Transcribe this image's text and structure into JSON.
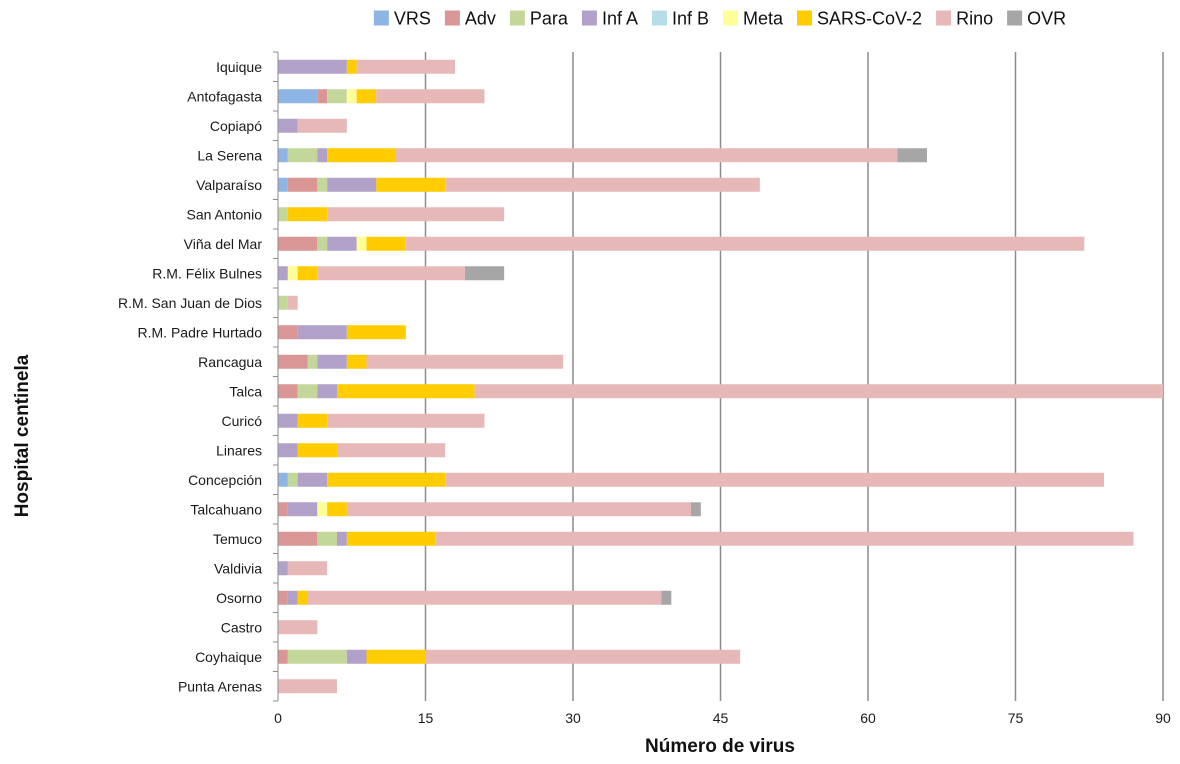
{
  "chart_data": {
    "type": "bar",
    "orientation": "horizontal",
    "stacked": true,
    "title": "",
    "xlabel": "Número de virus",
    "ylabel": "Hospital centinela",
    "xlim": [
      0,
      90
    ],
    "xticks": [
      0,
      15,
      30,
      45,
      60,
      75,
      90
    ],
    "grid": "vertical",
    "legend_position": "top",
    "categories": [
      "Iquique",
      "Antofagasta",
      "Copiapó",
      "La Serena",
      "Valparaíso",
      "San Antonio",
      "Viña del Mar",
      "R.M. Félix Bulnes",
      "R.M. San Juan de Dios",
      "R.M. Padre Hurtado",
      "Rancagua",
      "Talca",
      "Curicó",
      "Linares",
      "Concepción",
      "Talcahuano",
      "Temuco",
      "Valdivia",
      "Osorno",
      "Castro",
      "Coyhaique",
      "Punta Arenas"
    ],
    "series": [
      {
        "name": "VRS",
        "color": "#8db4e2",
        "values": [
          0,
          4,
          0,
          1,
          1,
          0,
          0,
          0,
          0,
          0,
          0,
          0,
          0,
          0,
          1,
          0,
          0,
          0,
          0,
          0,
          0,
          0
        ]
      },
      {
        "name": "Adv",
        "color": "#da9694",
        "values": [
          0,
          1,
          0,
          0,
          3,
          0,
          4,
          0,
          0,
          2,
          3,
          2,
          0,
          0,
          0,
          1,
          4,
          0,
          1,
          0,
          1,
          0
        ]
      },
      {
        "name": "Para",
        "color": "#c4d79b",
        "values": [
          0,
          2,
          0,
          3,
          1,
          1,
          1,
          0,
          1,
          0,
          1,
          2,
          0,
          0,
          1,
          0,
          2,
          0,
          0,
          0,
          6,
          0
        ]
      },
      {
        "name": "Inf A",
        "color": "#b1a0c7",
        "values": [
          7,
          0,
          2,
          1,
          5,
          0,
          3,
          1,
          0,
          5,
          3,
          2,
          2,
          2,
          3,
          3,
          1,
          1,
          1,
          0,
          2,
          0
        ]
      },
      {
        "name": "Inf B",
        "color": "#b7dee8",
        "values": [
          0,
          0,
          0,
          0,
          0,
          0,
          0,
          0,
          0,
          0,
          0,
          0,
          0,
          0,
          0,
          0,
          0,
          0,
          0,
          0,
          0,
          0
        ]
      },
      {
        "name": "Meta",
        "color": "#ffff99",
        "values": [
          0,
          1,
          0,
          0,
          0,
          0,
          1,
          1,
          0,
          0,
          0,
          0,
          0,
          0,
          0,
          1,
          0,
          0,
          0,
          0,
          0,
          0
        ]
      },
      {
        "name": "SARS-CoV-2",
        "color": "#ffcc00",
        "values": [
          1,
          2,
          0,
          7,
          7,
          4,
          4,
          2,
          0,
          6,
          2,
          14,
          3,
          4,
          12,
          2,
          9,
          0,
          1,
          0,
          6,
          0
        ]
      },
      {
        "name": "Rino",
        "color": "#e6b9b8",
        "values": [
          10,
          11,
          5,
          51,
          32,
          18,
          69,
          15,
          1,
          0,
          20,
          70,
          16,
          11,
          67,
          35,
          71,
          4,
          36,
          4,
          32,
          6
        ]
      },
      {
        "name": "OVR",
        "color": "#a6a6a6",
        "values": [
          0,
          0,
          0,
          3,
          0,
          0,
          0,
          4,
          0,
          0,
          0,
          0,
          0,
          0,
          0,
          1,
          0,
          0,
          1,
          0,
          0,
          0
        ]
      }
    ]
  }
}
